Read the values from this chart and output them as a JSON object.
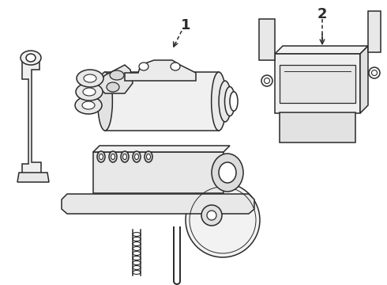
{
  "bg_color": "#ffffff",
  "line_color": "#2a2a2a",
  "label1": "1",
  "label2": "2",
  "lw": 1.1,
  "fig_width": 4.9,
  "fig_height": 3.6,
  "dpi": 100
}
